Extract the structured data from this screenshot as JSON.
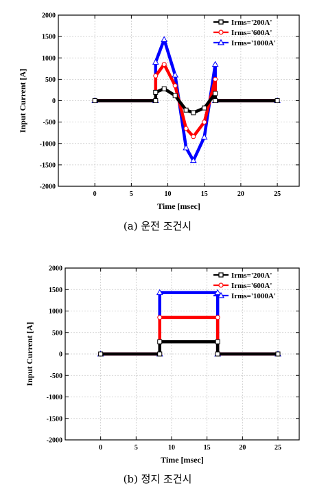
{
  "chart_data": [
    {
      "type": "line",
      "caption": "(a)  운전  조건시",
      "xlabel": "Time [msec]",
      "ylabel": "Input Current [A]",
      "xlim": [
        -5,
        28
      ],
      "ylim": [
        -2000,
        2000
      ],
      "xticks": [
        0,
        5,
        10,
        15,
        20,
        25
      ],
      "yticks": [
        -2000,
        -1500,
        -1000,
        -500,
        0,
        500,
        1000,
        1500,
        2000
      ],
      "grid": true,
      "legend_position": "top-right",
      "series": [
        {
          "name": "Irms='200A'",
          "color": "#000000",
          "marker": "square",
          "x": [
            0,
            8.33,
            8.33,
            9.5,
            11,
            12.5,
            13.5,
            15,
            16.5,
            16.5,
            25
          ],
          "y": [
            0,
            0,
            195,
            280,
            120,
            -220,
            -280,
            -170,
            170,
            0,
            0
          ]
        },
        {
          "name": "Irms='600A'",
          "color": "#ff0000",
          "marker": "circle",
          "x": [
            0,
            8.33,
            8.33,
            9.5,
            11,
            12.5,
            13.5,
            15,
            16.5,
            16.5,
            25
          ],
          "y": [
            0,
            0,
            580,
            850,
            350,
            -650,
            -840,
            -500,
            500,
            0,
            0
          ]
        },
        {
          "name": "Irms='1000A'",
          "color": "#0000ff",
          "marker": "triangle",
          "x": [
            0,
            8.33,
            8.33,
            9.5,
            11,
            12.5,
            13.5,
            15,
            16.5,
            16.5,
            25
          ],
          "y": [
            0,
            0,
            900,
            1430,
            600,
            -1100,
            -1400,
            -850,
            850,
            0,
            0
          ]
        }
      ]
    },
    {
      "type": "line",
      "caption": "(b)  정지  조건시",
      "xlabel": "Time [msec]",
      "ylabel": "Input Current [A]",
      "xlim": [
        -5,
        28
      ],
      "ylim": [
        -2000,
        2000
      ],
      "xticks": [
        0,
        5,
        10,
        15,
        20,
        25
      ],
      "yticks": [
        -2000,
        -1500,
        -1000,
        -500,
        0,
        500,
        1000,
        1500,
        2000
      ],
      "grid": true,
      "legend_position": "top-right",
      "series": [
        {
          "name": "Irms='200A'",
          "color": "#000000",
          "marker": "square",
          "x": [
            0,
            8.33,
            8.33,
            16.5,
            16.5,
            25
          ],
          "y": [
            0,
            0,
            285,
            285,
            0,
            0
          ]
        },
        {
          "name": "Irms='600A'",
          "color": "#ff0000",
          "marker": "circle",
          "x": [
            0,
            8.33,
            8.33,
            16.5,
            16.5,
            25
          ],
          "y": [
            0,
            0,
            850,
            850,
            0,
            0
          ]
        },
        {
          "name": "Irms='1000A'",
          "color": "#0000ff",
          "marker": "triangle",
          "x": [
            0,
            8.33,
            8.33,
            16.5,
            16.5,
            25
          ],
          "y": [
            0,
            0,
            1430,
            1430,
            0,
            0
          ]
        }
      ]
    }
  ]
}
